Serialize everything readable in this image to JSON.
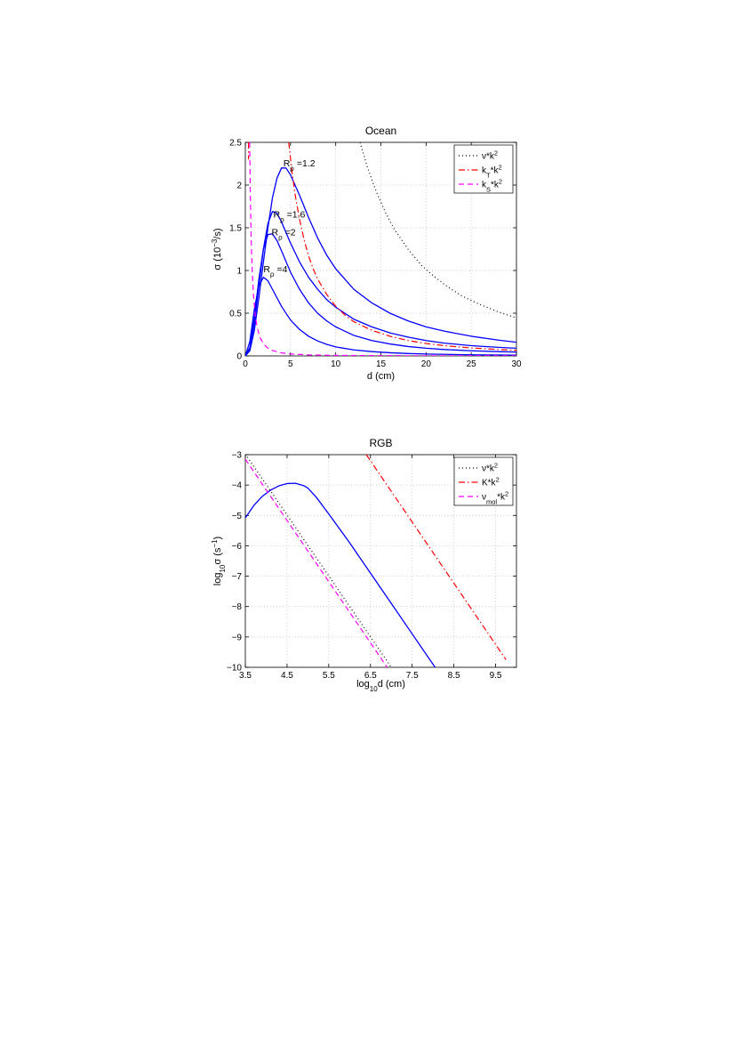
{
  "chart_data": [
    {
      "type": "line",
      "title": "Ocean",
      "xlabel": "d (cm)",
      "ylabel": {
        "base": "σ (10",
        "sup": "−3",
        "tail": "/s)"
      },
      "xlim": [
        0,
        30
      ],
      "ylim": [
        0,
        2.5
      ],
      "xticks": [
        0,
        5,
        10,
        15,
        20,
        25,
        30
      ],
      "xtick_labels": [
        "0",
        "5",
        "10",
        "15",
        "20",
        "25",
        "30"
      ],
      "yticks": [
        0,
        0.5,
        1,
        1.5,
        2,
        2.5
      ],
      "ytick_labels": [
        "0",
        "0.5",
        "1",
        "1.5",
        "2",
        "2.5"
      ],
      "grid": true,
      "legend_position": "top-right",
      "legend": [
        {
          "label": "ν*k",
          "sup": "2",
          "sub": "",
          "style": "dotted",
          "color": "#000000"
        },
        {
          "label": "k",
          "sub": "T",
          "rest": "*k",
          "sup": "2",
          "style": "dashdot",
          "color": "#ff0000"
        },
        {
          "label": "k",
          "sub": "S",
          "rest": "*k",
          "sup": "2",
          "style": "dashed",
          "color": "#ff00ff"
        }
      ],
      "series": [
        {
          "label_text": "R",
          "label_sub": "ρ",
          "label_value": "=1.2",
          "color": "#0000ff",
          "style": "solid",
          "points": [
            [
              0,
              0
            ],
            [
              0.5,
              0.06
            ],
            [
              1,
              0.3
            ],
            [
              1.5,
              0.68
            ],
            [
              2,
              1.1
            ],
            [
              2.5,
              1.5
            ],
            [
              3,
              1.85
            ],
            [
              3.5,
              2.08
            ],
            [
              4,
              2.2
            ],
            [
              4.5,
              2.2
            ],
            [
              5,
              2.12
            ],
            [
              6,
              1.88
            ],
            [
              7,
              1.62
            ],
            [
              8,
              1.38
            ],
            [
              9,
              1.18
            ],
            [
              10,
              1.02
            ],
            [
              12,
              0.78
            ],
            [
              14,
              0.62
            ],
            [
              16,
              0.5
            ],
            [
              18,
              0.41
            ],
            [
              20,
              0.34
            ],
            [
              22,
              0.29
            ],
            [
              25,
              0.23
            ],
            [
              28,
              0.185
            ],
            [
              30,
              0.16
            ]
          ]
        },
        {
          "label_text": "R",
          "label_sub": "ρ",
          "label_value": "=1.6",
          "color": "#0000ff",
          "style": "solid",
          "points": [
            [
              0,
              0
            ],
            [
              0.5,
              0.08
            ],
            [
              1,
              0.38
            ],
            [
              1.5,
              0.82
            ],
            [
              2,
              1.25
            ],
            [
              2.5,
              1.55
            ],
            [
              3,
              1.69
            ],
            [
              3.5,
              1.67
            ],
            [
              4,
              1.57
            ],
            [
              5,
              1.32
            ],
            [
              6,
              1.1
            ],
            [
              7,
              0.92
            ],
            [
              8,
              0.78
            ],
            [
              9,
              0.66
            ],
            [
              10,
              0.57
            ],
            [
              12,
              0.43
            ],
            [
              14,
              0.34
            ],
            [
              16,
              0.27
            ],
            [
              18,
              0.22
            ],
            [
              20,
              0.18
            ],
            [
              22,
              0.15
            ],
            [
              25,
              0.12
            ],
            [
              28,
              0.1
            ],
            [
              30,
              0.09
            ]
          ]
        },
        {
          "label_text": "R",
          "label_sub": "ρ",
          "label_value": "=2",
          "color": "#0000ff",
          "style": "solid",
          "points": [
            [
              0,
              0
            ],
            [
              0.5,
              0.1
            ],
            [
              1,
              0.45
            ],
            [
              1.5,
              0.9
            ],
            [
              2,
              1.25
            ],
            [
              2.5,
              1.42
            ],
            [
              3,
              1.43
            ],
            [
              3.5,
              1.35
            ],
            [
              4,
              1.23
            ],
            [
              5,
              0.98
            ],
            [
              6,
              0.78
            ],
            [
              7,
              0.62
            ],
            [
              8,
              0.5
            ],
            [
              9,
              0.41
            ],
            [
              10,
              0.34
            ],
            [
              12,
              0.24
            ],
            [
              14,
              0.18
            ],
            [
              16,
              0.14
            ],
            [
              18,
              0.11
            ],
            [
              20,
              0.09
            ],
            [
              22,
              0.075
            ],
            [
              25,
              0.06
            ],
            [
              28,
              0.05
            ],
            [
              30,
              0.045
            ]
          ]
        },
        {
          "label_text": "R",
          "label_sub": "ρ",
          "label_value": "=4",
          "color": "#0000ff",
          "style": "solid",
          "points": [
            [
              0,
              0
            ],
            [
              0.5,
              0.17
            ],
            [
              1,
              0.55
            ],
            [
              1.5,
              0.82
            ],
            [
              2,
              0.92
            ],
            [
              2.5,
              0.88
            ],
            [
              3,
              0.78
            ],
            [
              4,
              0.58
            ],
            [
              5,
              0.42
            ],
            [
              6,
              0.31
            ],
            [
              7,
              0.23
            ],
            [
              8,
              0.175
            ],
            [
              9,
              0.135
            ],
            [
              10,
              0.105
            ],
            [
              12,
              0.07
            ],
            [
              14,
              0.05
            ],
            [
              16,
              0.037
            ],
            [
              18,
              0.028
            ],
            [
              20,
              0.022
            ],
            [
              25,
              0.013
            ],
            [
              30,
              0.009
            ]
          ]
        },
        {
          "name_ref": "ν*k²",
          "color": "#000000",
          "style": "dotted",
          "points": [
            [
              12.7,
              2.5
            ],
            [
              13.5,
              2.21
            ],
            [
              14.5,
              1.92
            ],
            [
              15.5,
              1.68
            ],
            [
              16.5,
              1.48
            ],
            [
              18,
              1.25
            ],
            [
              19.5,
              1.06
            ],
            [
              21,
              0.92
            ],
            [
              22.5,
              0.8
            ],
            [
              24,
              0.7
            ],
            [
              26,
              0.6
            ],
            [
              28,
              0.515
            ],
            [
              30,
              0.445
            ]
          ]
        },
        {
          "name_ref": "k_T*k²",
          "color": "#ff0000",
          "style": "dashdot",
          "points": [
            [
              4.8,
              2.5
            ],
            [
              5.2,
              2.12
            ],
            [
              5.6,
              1.83
            ],
            [
              6,
              1.6
            ],
            [
              6.5,
              1.36
            ],
            [
              7,
              1.17
            ],
            [
              7.5,
              1.02
            ],
            [
              8,
              0.9
            ],
            [
              9,
              0.72
            ],
            [
              10,
              0.58
            ],
            [
              11,
              0.48
            ],
            [
              12,
              0.4
            ],
            [
              14,
              0.3
            ],
            [
              16,
              0.23
            ],
            [
              18,
              0.18
            ],
            [
              20,
              0.145
            ],
            [
              22,
              0.12
            ],
            [
              25,
              0.093
            ],
            [
              28,
              0.075
            ],
            [
              30,
              0.065
            ]
          ]
        },
        {
          "name_ref": "k_S*k²",
          "color": "#ff00ff",
          "style": "dashed",
          "points": [
            [
              0.48,
              2.5
            ],
            [
              0.55,
              1.9
            ],
            [
              0.65,
              1.36
            ],
            [
              0.75,
              1.02
            ],
            [
              0.9,
              0.71
            ],
            [
              1.1,
              0.47
            ],
            [
              1.3,
              0.34
            ],
            [
              1.6,
              0.22
            ],
            [
              2,
              0.14
            ],
            [
              2.5,
              0.09
            ],
            [
              3,
              0.063
            ],
            [
              4,
              0.035
            ],
            [
              5,
              0.023
            ],
            [
              7,
              0.012
            ],
            [
              10,
              0.006
            ],
            [
              15,
              0.003
            ],
            [
              20,
              0.0015
            ],
            [
              30,
              0.0007
            ]
          ]
        },
        {
          "name_ref": "k_T*k² (steep part)",
          "color": "#ff0000",
          "style": "dashdot",
          "points": [
            [
              0.35,
              2.5
            ],
            [
              0.36,
              2.3
            ]
          ]
        }
      ]
    },
    {
      "type": "line",
      "title": "RGB",
      "xlabel": {
        "base": "log",
        "sub": "10",
        "tail": "d (cm)"
      },
      "ylabel": {
        "base": "log",
        "sub": "10",
        "mid": "σ (s",
        "sup": "−1",
        "tail": ")"
      },
      "xlim": [
        3.5,
        10
      ],
      "ylim": [
        -10,
        -3
      ],
      "xticks": [
        3.5,
        4.5,
        5.5,
        6.5,
        7.5,
        8.5,
        9.5
      ],
      "xtick_labels": [
        "3.5",
        "4.5",
        "5.5",
        "6.5",
        "7.5",
        "8.5",
        "9.5"
      ],
      "yticks": [
        -10,
        -9,
        -8,
        -7,
        -6,
        -5,
        -4,
        -3
      ],
      "ytick_labels": [
        "−10",
        "−9",
        "−8",
        "−7",
        "−6",
        "−5",
        "−4",
        "−3"
      ],
      "grid": true,
      "legend_position": "top-right",
      "legend": [
        {
          "label": "ν*k",
          "sup": "2",
          "sub": "",
          "style": "dotted",
          "color": "#000000"
        },
        {
          "label": "K*k",
          "sup": "2",
          "sub": "",
          "style": "dashdot",
          "color": "#ff0000"
        },
        {
          "label": "ν",
          "sub": "mol",
          "rest": "*k",
          "sup": "2",
          "style": "dashed",
          "color": "#ff00ff"
        }
      ],
      "series": [
        {
          "name_ref": "solid",
          "color": "#0000ff",
          "style": "solid",
          "points": [
            [
              3.5,
              -5.08
            ],
            [
              3.7,
              -4.68
            ],
            [
              3.9,
              -4.38
            ],
            [
              4.1,
              -4.17
            ],
            [
              4.3,
              -4.03
            ],
            [
              4.5,
              -3.95
            ],
            [
              4.7,
              -3.94
            ],
            [
              4.9,
              -4.02
            ],
            [
              5.0,
              -4.1
            ],
            [
              5.2,
              -4.4
            ],
            [
              5.5,
              -4.95
            ],
            [
              6,
              -5.9
            ],
            [
              6.5,
              -6.9
            ],
            [
              7,
              -7.9
            ],
            [
              7.5,
              -8.9
            ],
            [
              8,
              -9.9
            ],
            [
              8.05,
              -10
            ]
          ]
        },
        {
          "name_ref": "ν*k²",
          "color": "#000000",
          "style": "dotted",
          "points": [
            [
              3.5,
              -2.98
            ],
            [
              7.0,
              -10
            ]
          ]
        },
        {
          "name_ref": "K*k²",
          "color": "#ff0000",
          "style": "dashdot",
          "points": [
            [
              6.4,
              -3.0
            ],
            [
              9.75,
              -9.75
            ]
          ]
        },
        {
          "name_ref": "ν_mol*k²",
          "color": "#ff00ff",
          "style": "dashed",
          "points": [
            [
              3.5,
              -3.15
            ],
            [
              6.9,
              -10
            ]
          ]
        }
      ]
    }
  ]
}
